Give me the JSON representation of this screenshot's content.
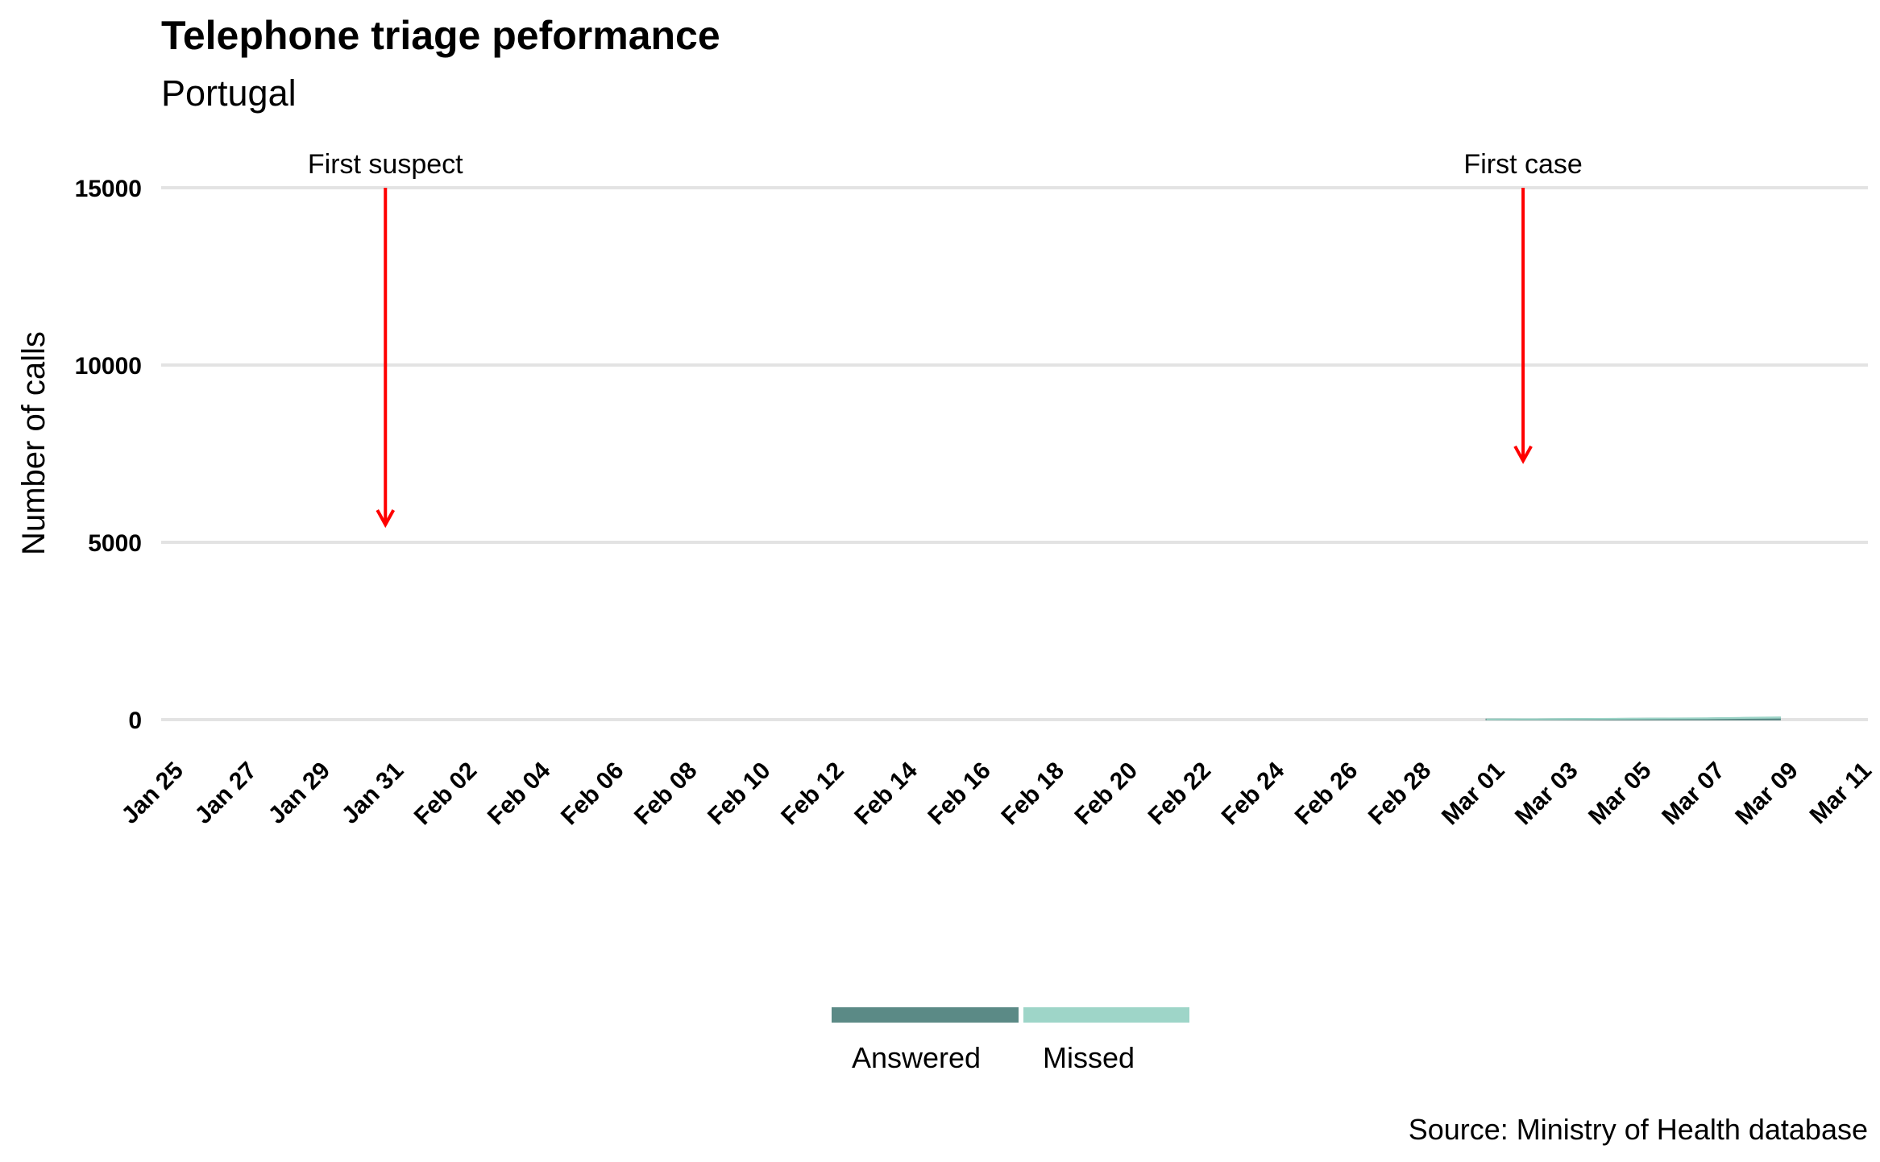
{
  "chart_data": {
    "type": "area",
    "title": "Telephone triage peformance",
    "subtitle": "Portugal",
    "xlabel": "",
    "ylabel": "Number of calls",
    "caption": "Source: Ministry of Health database",
    "ylim": [
      0,
      15000
    ],
    "yticks": [
      0,
      5000,
      10000,
      15000
    ],
    "xlim": [
      "2020-01-25",
      "2020-03-11"
    ],
    "xtick_dates": [
      "2020-01-25",
      "2020-01-27",
      "2020-01-29",
      "2020-01-31",
      "2020-02-02",
      "2020-02-04",
      "2020-02-06",
      "2020-02-08",
      "2020-02-10",
      "2020-02-12",
      "2020-02-14",
      "2020-02-16",
      "2020-02-18",
      "2020-02-20",
      "2020-02-22",
      "2020-02-24",
      "2020-02-26",
      "2020-02-28",
      "2020-03-01",
      "2020-03-03",
      "2020-03-05",
      "2020-03-07",
      "2020-03-09",
      "2020-03-11"
    ],
    "xtick_labels": [
      "Jan 25",
      "Jan 27",
      "Jan 29",
      "Jan 31",
      "Feb 02",
      "Feb 04",
      "Feb 06",
      "Feb 08",
      "Feb 10",
      "Feb 12",
      "Feb 14",
      "Feb 16",
      "Feb 18",
      "Feb 20",
      "Feb 22",
      "Feb 24",
      "Feb 26",
      "Feb 28",
      "Mar 01",
      "Mar 03",
      "Mar 05",
      "Mar 07",
      "Mar 09",
      "Mar 11"
    ],
    "grid": "horizontal",
    "stacked": true,
    "series": [
      {
        "name": "Answered",
        "color": "#5b8a86",
        "x": [
          "2020-03-01",
          "2020-03-02",
          "2020-03-03",
          "2020-03-04",
          "2020-03-05",
          "2020-03-06",
          "2020-03-07",
          "2020-03-08",
          "2020-03-09"
        ],
        "values": [
          5,
          10,
          15,
          20,
          25,
          30,
          35,
          45,
          55
        ]
      },
      {
        "name": "Missed",
        "color": "#9ed5c8",
        "x": [
          "2020-03-01",
          "2020-03-02",
          "2020-03-03",
          "2020-03-04",
          "2020-03-05",
          "2020-03-06",
          "2020-03-07",
          "2020-03-08",
          "2020-03-09"
        ],
        "values": [
          0,
          0,
          2,
          3,
          4,
          5,
          6,
          8,
          10
        ]
      }
    ],
    "annotations": [
      {
        "label": "First suspect",
        "date": "2020-01-31",
        "y_start": 15000,
        "y_end": 5500,
        "color": "#ff0000"
      },
      {
        "label": "First case",
        "date": "2020-03-02",
        "y_start": 15000,
        "y_end": 7300,
        "color": "#ff0000"
      }
    ],
    "legend": {
      "position": "bottom",
      "entries": [
        "Answered",
        "Missed"
      ]
    }
  }
}
